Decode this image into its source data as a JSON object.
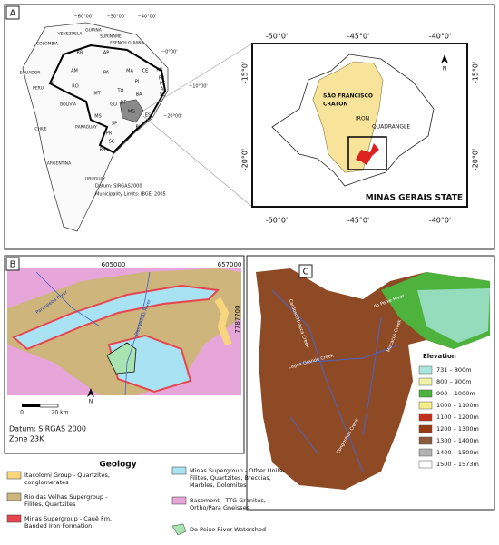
{
  "panel_a": {
    "label": "A",
    "countries": [
      "VENEZUELA",
      "GUIANA",
      "SURINAME",
      "FRENCH GUIANA",
      "COLOMBIA",
      "EQUADOR",
      "PERU",
      "BOLIVIA",
      "CHILE",
      "PARAGUAY",
      "ARGENTINA",
      "URUGUAY"
    ],
    "states": [
      "RR",
      "AP",
      "AM",
      "PA",
      "MA",
      "CE",
      "RN",
      "PB",
      "PE",
      "AL",
      "SE",
      "PI",
      "TO",
      "BA",
      "AC",
      "RO",
      "MT",
      "GO",
      "DF",
      "MG",
      "ES",
      "MS",
      "SP",
      "RJ",
      "PR",
      "SC",
      "RS"
    ],
    "lon_ticks": [
      "−60°00'",
      "−50°00'",
      "−40°00'"
    ],
    "lat_ticks": [
      "−0°00'",
      "−10°00'",
      "−20°00'"
    ],
    "datum": "Datum: SIRGAS2000",
    "limits": "Municipality Limits: IBGE, 2005"
  },
  "inset": {
    "lon_ticks": [
      "-50°0'",
      "-45°0'",
      "-40°0'"
    ],
    "lat_ticks": [
      "-15°0'",
      "-20°0'"
    ],
    "craton": [
      "SÃO FRANCISCO",
      "CRATON"
    ],
    "iron": [
      "IRON",
      "QUADRANGLE"
    ],
    "state": "MINAS GERAIS STATE",
    "north": "N"
  },
  "panel_b": {
    "label": "B",
    "x_ticks": [
      "605000",
      "657000"
    ],
    "y_tick": "7787700",
    "rivers": [
      "Paraopeba River",
      "Das Velhas River"
    ],
    "scale": [
      "0",
      "20 km"
    ],
    "datum": "Datum: SIRGAS 2000",
    "zone": "Zone 23K",
    "north": "N"
  },
  "geology": {
    "title": "Geology",
    "items": [
      {
        "lines": [
          "Itacolomi Group - Quartzites,",
          "conglomerates"
        ],
        "color": "#f7d67e"
      },
      {
        "lines": [
          "Rio das Velhas Supergroup -",
          "Filites, Quartzites"
        ],
        "color": "#cdb57c"
      },
      {
        "lines": [
          "Minas Supergroup - Cauê Fm.",
          "Banded Iron Formation"
        ],
        "color": "#e8454f"
      },
      {
        "lines": [
          "Minas Supergroup - Other Units-",
          "Filites, Quartzites, Breccias,",
          "Marbles, Dolomites"
        ],
        "color": "#a9e2f2"
      },
      {
        "lines": [
          "Basement - TTG Granites,",
          "Ortho/Para Gneisses"
        ],
        "color": "#e6a6da"
      },
      {
        "lines": [
          "Do Peixe River Watershed"
        ],
        "color": "#a8e4b2"
      }
    ]
  },
  "panel_c": {
    "label": "C",
    "creeks": [
      "Cardoso/Mutuca Creek",
      "do Peixe River",
      "Lagoa Grande Creek",
      "Macacos Creek",
      "Congonhas Creek"
    ],
    "legend_title": "Elevation",
    "classes": [
      {
        "label": "731 – 800m",
        "color": "#a6e6dc"
      },
      {
        "label": "800 – 900m",
        "color": "#eef3a6"
      },
      {
        "label": "900 – 1000m",
        "color": "#4db33d"
      },
      {
        "label": "1000 – 1100m",
        "color": "#f4ee8a"
      },
      {
        "label": "1100 – 1200m",
        "color": "#c3311d"
      },
      {
        "label": "1200 – 1300m",
        "color": "#983a12"
      },
      {
        "label": "1300 – 1400m",
        "color": "#8b5c3c"
      },
      {
        "label": "1400 – 1500m",
        "color": "#b2b2b2"
      },
      {
        "label": "1500 – 1573m",
        "color": "#ffffff"
      }
    ]
  }
}
